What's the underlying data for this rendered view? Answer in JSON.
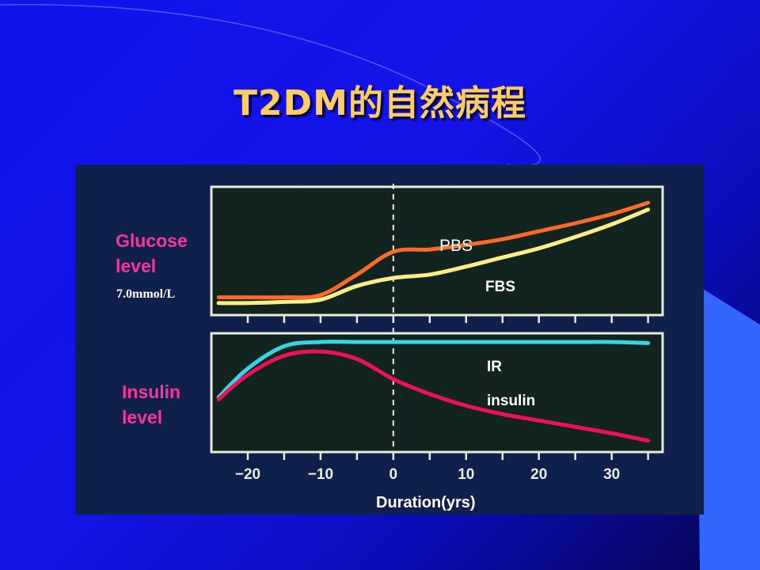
{
  "slide": {
    "title": "T2DM的自然病程",
    "colors": {
      "background": "#1414e6",
      "title": "#ffcc66",
      "accent_shape": "#3366ff",
      "panel": "#10204c"
    }
  },
  "chart_data": [
    {
      "type": "line",
      "panel": "top",
      "ylabel": "Glucose\nlevel",
      "ylabel_lines": [
        "Glucose",
        "level"
      ],
      "unit_label": "7.0mmol/L",
      "x": [
        -24,
        -20,
        -15,
        -10,
        -5,
        0,
        5,
        10,
        15,
        20,
        25,
        30,
        35
      ],
      "series": [
        {
          "name": "PBS",
          "color": "#ff6a2a",
          "values": [
            0.1,
            0.1,
            0.1,
            0.12,
            0.3,
            0.5,
            0.52,
            0.56,
            0.61,
            0.68,
            0.75,
            0.83,
            0.93
          ]
        },
        {
          "name": "FBS",
          "color": "#ffee88",
          "values": [
            0.05,
            0.05,
            0.06,
            0.08,
            0.2,
            0.27,
            0.3,
            0.37,
            0.45,
            0.53,
            0.63,
            0.74,
            0.87
          ]
        }
      ],
      "ylim": [
        0,
        1
      ],
      "xlim": [
        -25,
        37
      ],
      "divider_x": 0,
      "grid": false
    },
    {
      "type": "line",
      "panel": "bottom",
      "ylabel": "Insulin\nlevel",
      "ylabel_lines": [
        "Insulin",
        "level"
      ],
      "x": [
        -24,
        -20,
        -15,
        -10,
        -5,
        0,
        5,
        10,
        15,
        20,
        25,
        30,
        35
      ],
      "series": [
        {
          "name": "IR",
          "color": "#33d6e6",
          "values": [
            0.45,
            0.72,
            0.93,
            0.97,
            0.97,
            0.97,
            0.97,
            0.97,
            0.97,
            0.97,
            0.97,
            0.97,
            0.96
          ]
        },
        {
          "name": "insulin",
          "color": "#ee1155",
          "values": [
            0.43,
            0.66,
            0.84,
            0.88,
            0.81,
            0.62,
            0.48,
            0.37,
            0.29,
            0.23,
            0.17,
            0.11,
            0.04
          ]
        }
      ],
      "ylim": [
        0,
        1
      ],
      "xlim": [
        -25,
        37
      ],
      "xticks": [
        -20,
        -10,
        0,
        10,
        20,
        30
      ],
      "xtick_labels": [
        "−20",
        "−10",
        "0",
        "10",
        "20",
        "30"
      ],
      "xlabel": "Duration(yrs)",
      "divider_x": 0,
      "grid": false
    }
  ]
}
